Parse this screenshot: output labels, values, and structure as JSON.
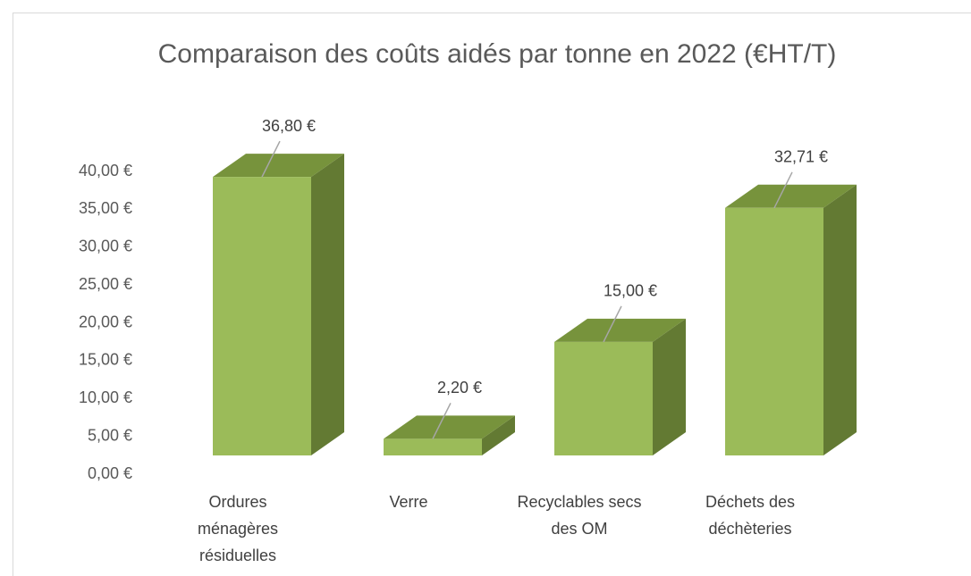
{
  "chart_data": {
    "type": "bar3d",
    "title": "Comparaison des coûts aidés par tonne en 2022 (€HT/T)",
    "categories": [
      "Ordures ménagères résiduelles",
      "Verre",
      "Recyclables secs des OM",
      "Déchets des déchèteries"
    ],
    "values": [
      36.8,
      2.2,
      15.0,
      32.71
    ],
    "value_labels": [
      "36,80 €",
      "2,20 €",
      "15,00 €",
      "32,71 €"
    ],
    "colors": {
      "front": "#9bbb59",
      "top": "#77933c",
      "side": "#637a33"
    },
    "ylim": [
      0,
      40
    ],
    "yticks": [
      {
        "value": 0,
        "label": "0,00 €"
      },
      {
        "value": 5,
        "label": "5,00 €"
      },
      {
        "value": 10,
        "label": "10,00 €"
      },
      {
        "value": 15,
        "label": "15,00 €"
      },
      {
        "value": 20,
        "label": "20,00 €"
      },
      {
        "value": 25,
        "label": "25,00 €"
      },
      {
        "value": 30,
        "label": "30,00 €"
      },
      {
        "value": 35,
        "label": "35,00 €"
      },
      {
        "value": 40,
        "label": "40,00 €"
      }
    ],
    "grid": false
  }
}
